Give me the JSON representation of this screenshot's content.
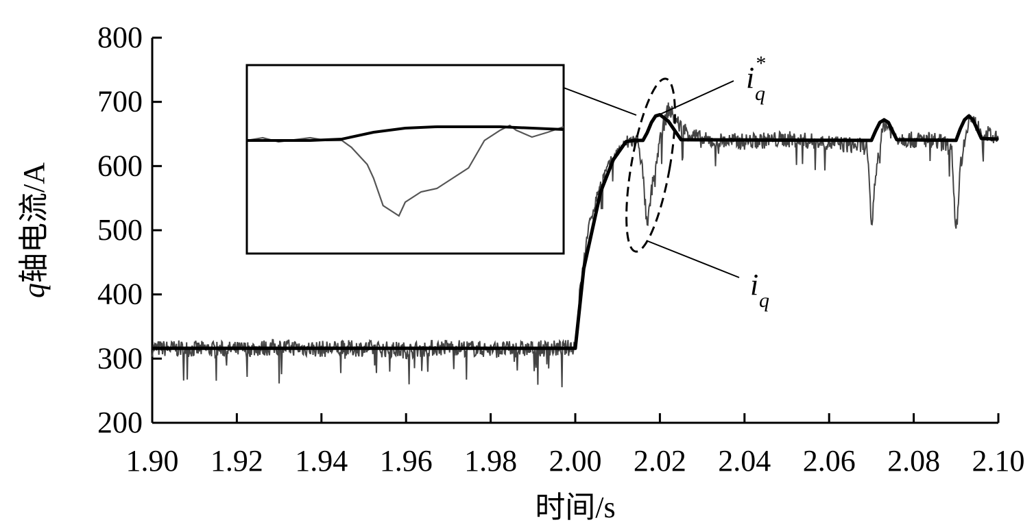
{
  "chart_data": {
    "type": "line",
    "xlabel": "时间/s",
    "ylabel_var": "q",
    "ylabel_rest": "轴电流/A",
    "xlim": [
      1.9,
      2.1
    ],
    "ylim": [
      200,
      800
    ],
    "xticks": [
      "1.90",
      "1.92",
      "1.94",
      "1.96",
      "1.98",
      "2.00",
      "2.02",
      "2.04",
      "2.06",
      "2.08",
      "2.10"
    ],
    "yticks": [
      "200",
      "300",
      "400",
      "500",
      "600",
      "700",
      "800"
    ],
    "grid": false,
    "legend": "none",
    "series": [
      {
        "role": "reference",
        "color": "#000000",
        "x": [
          1.9,
          2.0,
          2.002,
          2.006,
          2.009,
          2.012,
          2.014,
          2.016,
          2.017,
          2.018,
          2.019,
          2.02,
          2.022,
          2.025,
          2.07,
          2.071,
          2.072,
          2.073,
          2.074,
          2.076,
          2.09,
          2.091,
          2.092,
          2.093,
          2.094,
          2.096,
          2.1
        ],
        "y": [
          316,
          316,
          440,
          560,
          610,
          638,
          640,
          640,
          652,
          668,
          678,
          680,
          670,
          641,
          640,
          655,
          668,
          672,
          668,
          641,
          640,
          658,
          672,
          678,
          672,
          643,
          642
        ]
      },
      {
        "role": "measured",
        "color": "#444444",
        "x": [
          1.9,
          1.92,
          1.93,
          1.94,
          1.95,
          1.96,
          1.97,
          1.98,
          1.998,
          2.0,
          2.001,
          2.003,
          2.006,
          2.009,
          2.011,
          2.013,
          2.015,
          2.016,
          2.017,
          2.018,
          2.02,
          2.022,
          2.025,
          2.03,
          2.04,
          2.05,
          2.06,
          2.069,
          2.07,
          2.071,
          2.073,
          2.076,
          2.08,
          2.085,
          2.089,
          2.09,
          2.091,
          2.093,
          2.096,
          2.1
        ],
        "y": [
          316,
          314,
          318,
          315,
          316,
          313,
          318,
          314,
          316,
          320,
          400,
          500,
          575,
          615,
          630,
          640,
          638,
          585,
          500,
          560,
          640,
          690,
          660,
          640,
          638,
          642,
          636,
          630,
          500,
          590,
          668,
          645,
          640,
          642,
          630,
          490,
          600,
          676,
          655,
          640
        ]
      }
    ],
    "annotations": {
      "ref_label": "i",
      "ref_sub": "q",
      "ref_sup": "*",
      "meas_label": "i",
      "meas_sub": "q"
    },
    "inset": {
      "reference": [
        [
          0,
          40
        ],
        [
          0.2,
          40
        ],
        [
          0.3,
          38
        ],
        [
          0.4,
          28
        ],
        [
          0.5,
          22
        ],
        [
          0.6,
          20
        ],
        [
          0.8,
          20
        ],
        [
          1.0,
          24
        ]
      ],
      "measured": [
        [
          0,
          40
        ],
        [
          0.05,
          36
        ],
        [
          0.1,
          42
        ],
        [
          0.2,
          36
        ],
        [
          0.25,
          40
        ],
        [
          0.3,
          40
        ],
        [
          0.33,
          50
        ],
        [
          0.38,
          75
        ],
        [
          0.4,
          95
        ],
        [
          0.43,
          135
        ],
        [
          0.48,
          150
        ],
        [
          0.5,
          130
        ],
        [
          0.55,
          115
        ],
        [
          0.6,
          110
        ],
        [
          0.65,
          95
        ],
        [
          0.7,
          80
        ],
        [
          0.75,
          40
        ],
        [
          0.8,
          25
        ],
        [
          0.83,
          18
        ],
        [
          0.85,
          25
        ],
        [
          0.9,
          35
        ],
        [
          0.95,
          28
        ],
        [
          1.0,
          20
        ]
      ]
    }
  }
}
